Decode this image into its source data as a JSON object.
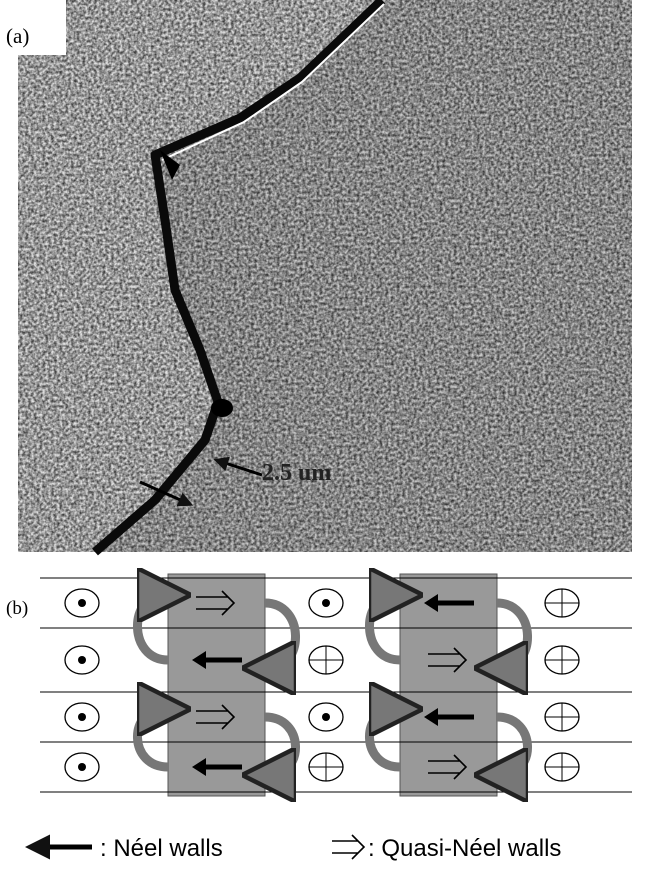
{
  "panel_a": {
    "label": "(a)",
    "scale_label": "2.5 um"
  },
  "panel_b": {
    "label": "(b)"
  },
  "legend": {
    "neel": ": Néel walls",
    "quasi_neel": ": Quasi-Néel walls"
  }
}
